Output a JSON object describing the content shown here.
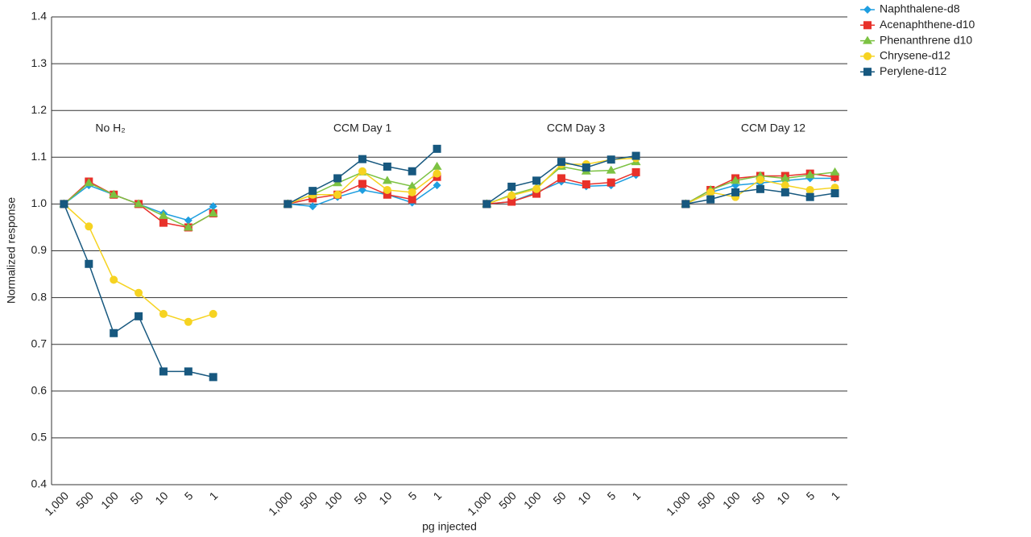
{
  "chart_data": {
    "type": "line",
    "y_label": "Normalized response",
    "x_label": "pg injected",
    "annotations": [
      "No H₂",
      "CCM Day 1",
      "CCM Day 3",
      "CCM Day 12"
    ],
    "categories": [
      "1,000",
      "500",
      "100",
      "50",
      "10",
      "5",
      "1",
      null,
      null,
      "1,000",
      "500",
      "100",
      "50",
      "10",
      "5",
      "1",
      null,
      "1,000",
      "500",
      "100",
      "50",
      "10",
      "5",
      "1",
      null,
      "1,000",
      "500",
      "100",
      "50",
      "10",
      "5",
      "1"
    ],
    "ylim": [
      0.4,
      1.4
    ],
    "yticks": [
      0.4,
      0.5,
      0.6,
      0.7,
      0.8,
      0.9,
      {
        "value": 1,
        "label": "1.0"
      },
      1.1,
      1.2,
      1.3,
      1.4
    ],
    "grid": true,
    "legend": "top-right",
    "series": [
      {
        "name": "Naphthalene-d8",
        "color": "#1e9ee0",
        "marker": "diamond",
        "values": [
          1.0,
          1.04,
          1.02,
          1.0,
          0.98,
          0.965,
          0.995,
          null,
          null,
          1.0,
          0.995,
          1.015,
          1.03,
          1.02,
          1.003,
          1.04,
          null,
          1.0,
          1.005,
          1.025,
          1.048,
          1.038,
          1.04,
          1.062,
          null,
          1.0,
          1.025,
          1.04,
          1.045,
          1.05,
          1.055,
          1.055
        ]
      },
      {
        "name": "Acenaphthene-d10",
        "color": "#e8312a",
        "marker": "square",
        "values": [
          1.0,
          1.048,
          1.02,
          1.0,
          0.96,
          0.95,
          0.98,
          null,
          null,
          1.0,
          1.012,
          1.02,
          1.043,
          1.02,
          1.01,
          1.058,
          null,
          1.0,
          1.005,
          1.022,
          1.055,
          1.042,
          1.046,
          1.068,
          null,
          1.0,
          1.03,
          1.055,
          1.06,
          1.06,
          1.065,
          1.058
        ]
      },
      {
        "name": "Phenanthrene d10",
        "color": "#7cc242",
        "marker": "triangle",
        "values": [
          1.0,
          1.045,
          1.02,
          1.0,
          0.975,
          0.95,
          0.98,
          null,
          null,
          1.0,
          1.02,
          1.045,
          1.068,
          1.05,
          1.038,
          1.08,
          null,
          1.0,
          1.02,
          1.035,
          1.08,
          1.07,
          1.072,
          1.09,
          null,
          1.0,
          1.03,
          1.05,
          1.06,
          1.055,
          1.062,
          1.068
        ]
      },
      {
        "name": "Chrysene-d12",
        "color": "#f6d321",
        "marker": "circle",
        "values": [
          1.0,
          0.952,
          0.838,
          0.81,
          0.765,
          0.748,
          0.765,
          null,
          null,
          1.0,
          1.02,
          1.02,
          1.07,
          1.03,
          1.025,
          1.065,
          null,
          1.0,
          1.018,
          1.032,
          1.085,
          1.085,
          1.095,
          1.098,
          null,
          1.0,
          1.025,
          1.015,
          1.052,
          1.04,
          1.03,
          1.035
        ]
      },
      {
        "name": "Perylene-d12",
        "color": "#17587f",
        "marker": "square",
        "values": [
          1.0,
          0.872,
          0.724,
          0.76,
          0.642,
          0.642,
          0.63,
          null,
          null,
          1.0,
          1.028,
          1.055,
          1.096,
          1.08,
          1.07,
          1.118,
          null,
          1.0,
          1.037,
          1.05,
          1.09,
          1.078,
          1.095,
          1.103,
          null,
          1.0,
          1.01,
          1.025,
          1.032,
          1.025,
          1.015,
          1.023
        ]
      }
    ]
  }
}
